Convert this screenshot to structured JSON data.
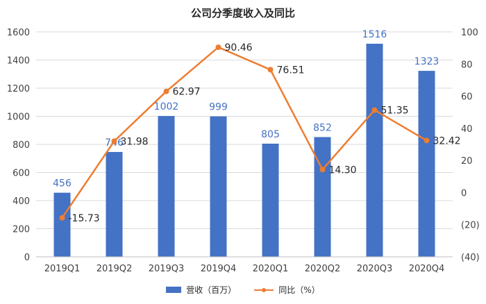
{
  "chart_data": {
    "type": "bar",
    "title": "公司分季度收入及同比",
    "categories": [
      "2019Q1",
      "2019Q2",
      "2019Q3",
      "2019Q4",
      "2020Q1",
      "2020Q2",
      "2020Q3",
      "2020Q4"
    ],
    "series": [
      {
        "name": "营收（百万）",
        "type": "bar",
        "axis": "left",
        "values": [
          456,
          746,
          1002,
          999,
          805,
          852,
          1516,
          1323
        ],
        "labels": [
          "456",
          "746",
          "1002",
          "999",
          "805",
          "852",
          "1516",
          "1323"
        ],
        "color": "#4472c4"
      },
      {
        "name": "同比（%）",
        "type": "line",
        "axis": "right",
        "values": [
          -15.73,
          31.98,
          62.97,
          90.46,
          76.51,
          14.3,
          51.35,
          32.42
        ],
        "labels": [
          "-15.73",
          "31.98",
          "62.97",
          "90.46",
          "76.51",
          "14.30",
          "51.35",
          "32.42"
        ],
        "color": "#ed7d31"
      }
    ],
    "y_left": {
      "range": [
        0,
        1600
      ],
      "ticks": [
        "0",
        "200",
        "400",
        "600",
        "800",
        "1000",
        "1200",
        "1400",
        "1600"
      ]
    },
    "y_right": {
      "range": [
        -40,
        100
      ],
      "ticks": [
        "(40)",
        "(20)",
        "0",
        "20",
        "40",
        "60",
        "80",
        "100"
      ]
    },
    "grid": true,
    "legend_position": "bottom"
  }
}
